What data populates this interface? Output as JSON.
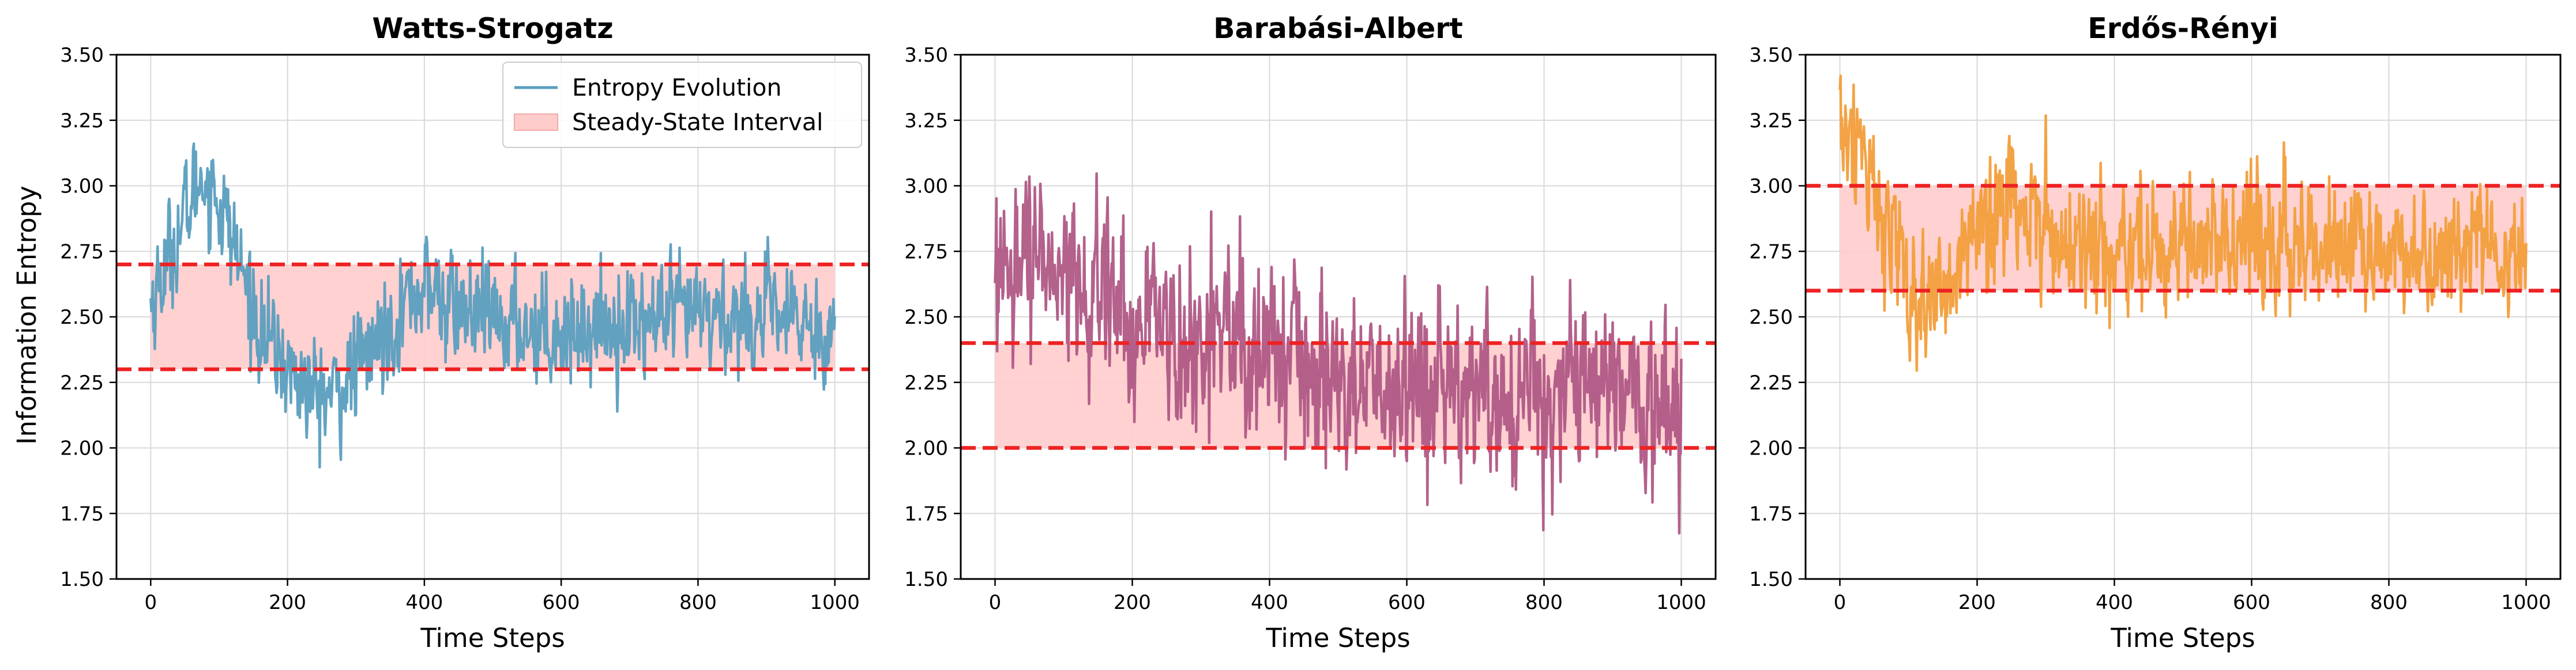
{
  "figure": {
    "ylabel": "Information Entropy"
  },
  "legend": {
    "line_label": "Entropy Evolution",
    "band_label": "Steady-State Interval"
  },
  "chart_data": [
    {
      "type": "line",
      "title": "Watts-Strogatz",
      "xlabel": "Time Steps",
      "ylabel": "Information Entropy",
      "xlim": [
        -50,
        1050
      ],
      "ylim": [
        1.5,
        3.5
      ],
      "xticks": [
        0,
        200,
        400,
        600,
        800,
        1000
      ],
      "yticks": [
        1.5,
        1.75,
        2.0,
        2.25,
        2.5,
        2.75,
        3.0,
        3.25,
        3.5
      ],
      "color": "#5a9ebf",
      "steady_state": [
        2.3,
        2.7
      ],
      "grid": true,
      "legend": "top-right",
      "series_keypoints": {
        "x": [
          0,
          30,
          60,
          75,
          100,
          130,
          160,
          200,
          240,
          270,
          300,
          330,
          370,
          400,
          430,
          500,
          600,
          700,
          800,
          900,
          1000
        ],
        "y": [
          2.55,
          2.75,
          2.95,
          3.05,
          2.95,
          2.7,
          2.45,
          2.3,
          2.2,
          2.2,
          2.3,
          2.4,
          2.55,
          2.62,
          2.55,
          2.48,
          2.45,
          2.48,
          2.5,
          2.5,
          2.45
        ]
      },
      "noise_amplitude": 0.12
    },
    {
      "type": "line",
      "title": "Barabási-Albert",
      "xlabel": "Time Steps",
      "ylabel": "",
      "xlim": [
        -50,
        1050
      ],
      "ylim": [
        1.5,
        3.5
      ],
      "xticks": [
        0,
        200,
        400,
        600,
        800,
        1000
      ],
      "yticks": [
        1.5,
        1.75,
        2.0,
        2.25,
        2.5,
        2.75,
        3.0,
        3.25,
        3.5
      ],
      "color": "#b05886",
      "steady_state": [
        2.0,
        2.4
      ],
      "grid": true,
      "series_keypoints": {
        "x": [
          0,
          50,
          100,
          150,
          200,
          300,
          400,
          500,
          600,
          700,
          800,
          900,
          1000
        ],
        "y": [
          2.8,
          2.75,
          2.65,
          2.55,
          2.48,
          2.4,
          2.33,
          2.28,
          2.24,
          2.22,
          2.2,
          2.18,
          2.15
        ]
      },
      "noise_amplitude": 0.2
    },
    {
      "type": "line",
      "title": "Erdős-Rényi",
      "xlabel": "Time Steps",
      "ylabel": "",
      "xlim": [
        -50,
        1050
      ],
      "ylim": [
        1.5,
        3.5
      ],
      "xticks": [
        0,
        200,
        400,
        600,
        800,
        1000
      ],
      "yticks": [
        1.5,
        1.75,
        2.0,
        2.25,
        2.5,
        2.75,
        3.0,
        3.25,
        3.5
      ],
      "color": "#f29e3b",
      "steady_state": [
        2.6,
        3.0
      ],
      "grid": true,
      "series_keypoints": {
        "x": [
          0,
          20,
          50,
          80,
          110,
          140,
          170,
          200,
          250,
          300,
          350,
          400,
          500,
          600,
          700,
          800,
          900,
          1000
        ],
        "y": [
          3.25,
          3.2,
          2.95,
          2.7,
          2.55,
          2.58,
          2.7,
          2.88,
          2.9,
          2.85,
          2.7,
          2.75,
          2.78,
          2.8,
          2.78,
          2.78,
          2.75,
          2.75
        ]
      },
      "noise_amplitude": 0.14
    }
  ],
  "colors": {
    "band_fill": "#ffcccc",
    "band_line": "#ee2222",
    "grid": "#d9d9d9"
  }
}
